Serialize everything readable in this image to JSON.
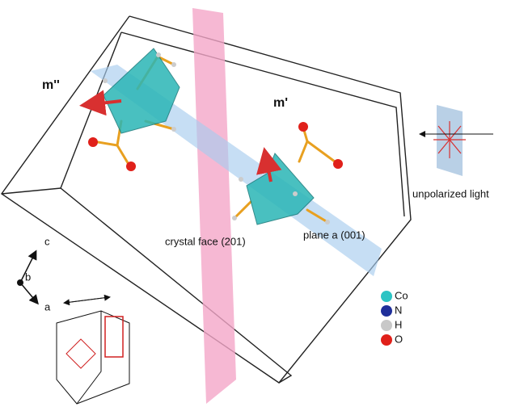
{
  "labels": {
    "m_double": "m''",
    "m_single": "m'",
    "crystal_face": "crystal face (201)",
    "plane_a": "plane a (001)",
    "light": "unpolarized light"
  },
  "axes": {
    "c": "c",
    "b": "b",
    "a": "a"
  },
  "legend": [
    {
      "label": "Co",
      "color": "#2cc4c4"
    },
    {
      "label": "N",
      "color": "#1f2f9a"
    },
    {
      "label": "H",
      "color": "#c8c8c8"
    },
    {
      "label": "O",
      "color": "#e0201a"
    }
  ]
}
